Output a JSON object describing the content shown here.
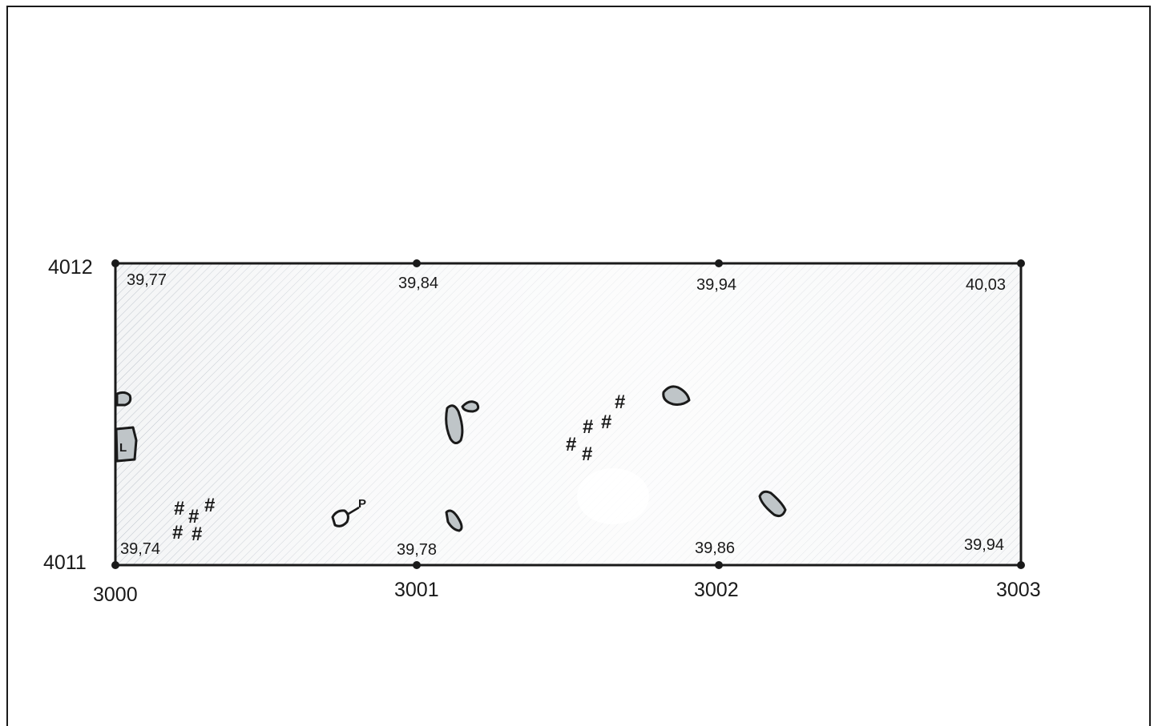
{
  "plan": {
    "y_labels": {
      "top": "4012",
      "bottom": "4011"
    },
    "x_labels": [
      "3000",
      "3001",
      "3002",
      "3003"
    ],
    "elevations_top": [
      "39,77",
      "39,84",
      "39,94",
      "40,03"
    ],
    "elevations_bottom": [
      "39,74",
      "39,78",
      "39,86",
      "39,94"
    ],
    "symbols": {
      "hash": "#",
      "p_label": "P",
      "l_label": "L"
    }
  }
}
